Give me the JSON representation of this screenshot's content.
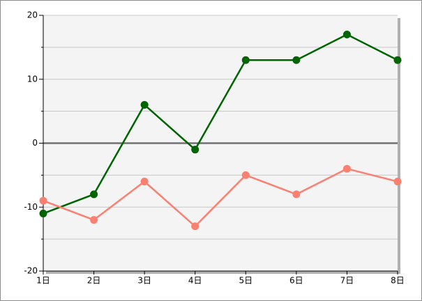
{
  "chart_data": {
    "type": "line",
    "categories": [
      "1日",
      "2日",
      "3日",
      "4日",
      "5日",
      "6日",
      "7日",
      "8日"
    ],
    "series": [
      {
        "color": "#006400",
        "values": [
          -11,
          -8,
          6,
          -1,
          13,
          13,
          17,
          13
        ]
      },
      {
        "color": "#fa8072",
        "values": [
          -9,
          -12,
          -6,
          -13,
          -5,
          -8,
          -4,
          -6
        ]
      }
    ],
    "ylim": [
      -20,
      20
    ],
    "yticks": [
      -20,
      -10,
      0,
      10,
      20
    ],
    "minor_yticks": [
      -15,
      -5,
      5,
      15
    ],
    "grid": true
  }
}
